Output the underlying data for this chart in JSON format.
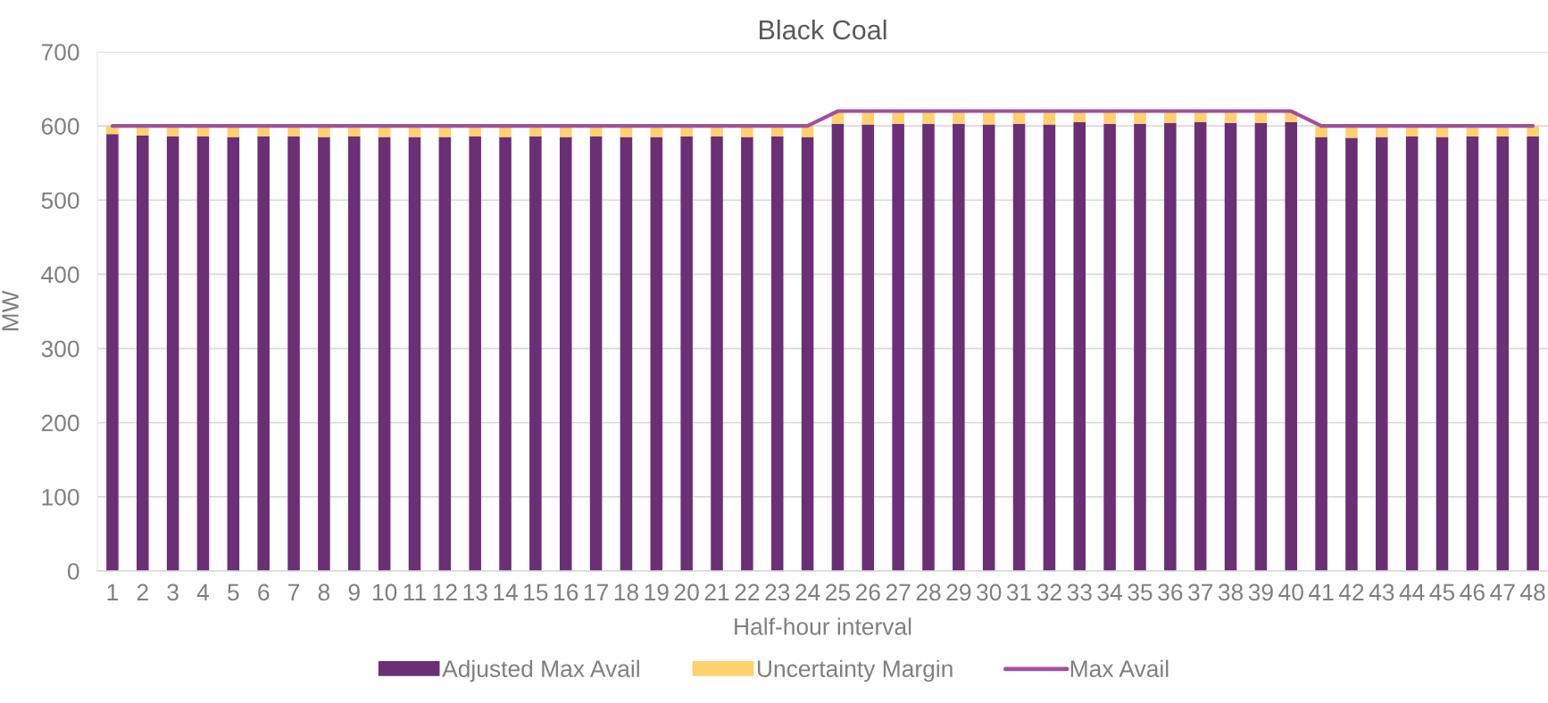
{
  "chart_data": {
    "type": "bar",
    "title": "Black Coal",
    "xlabel": "Half-hour interval",
    "ylabel": "MW",
    "categories": [
      "1",
      "2",
      "3",
      "4",
      "5",
      "6",
      "7",
      "8",
      "9",
      "10",
      "11",
      "12",
      "13",
      "14",
      "15",
      "16",
      "17",
      "18",
      "19",
      "20",
      "21",
      "22",
      "23",
      "24",
      "25",
      "26",
      "27",
      "28",
      "29",
      "30",
      "31",
      "32",
      "33",
      "34",
      "35",
      "36",
      "37",
      "38",
      "39",
      "40",
      "41",
      "42",
      "43",
      "44",
      "45",
      "46",
      "47",
      "48"
    ],
    "stacked": true,
    "series": [
      {
        "name": "Adjusted Max Avail",
        "color": "#6b2f76",
        "values": [
          589,
          587,
          586,
          586,
          585,
          586,
          586,
          585,
          586,
          585,
          585,
          585,
          586,
          585,
          586,
          585,
          586,
          585,
          585,
          586,
          586,
          585,
          586,
          585,
          603,
          602,
          603,
          603,
          603,
          602,
          603,
          602,
          605,
          603,
          603,
          604,
          605,
          604,
          604,
          605,
          585,
          584,
          585,
          586,
          585,
          586,
          586,
          586
        ]
      },
      {
        "name": "Uncertainty Margin",
        "color": "#fdd16d",
        "values": [
          11,
          13,
          14,
          14,
          15,
          14,
          14,
          15,
          14,
          15,
          15,
          15,
          14,
          15,
          14,
          15,
          14,
          15,
          15,
          14,
          14,
          15,
          14,
          15,
          17,
          18,
          17,
          17,
          17,
          18,
          17,
          18,
          15,
          17,
          17,
          16,
          15,
          16,
          16,
          15,
          15,
          16,
          15,
          14,
          15,
          14,
          14,
          14
        ]
      },
      {
        "name": "Max Avail",
        "type": "line",
        "color": "#a24f9e",
        "values": [
          600,
          600,
          600,
          600,
          600,
          600,
          600,
          600,
          600,
          600,
          600,
          600,
          600,
          600,
          600,
          600,
          600,
          600,
          600,
          600,
          600,
          600,
          600,
          600,
          620,
          620,
          620,
          620,
          620,
          620,
          620,
          620,
          620,
          620,
          620,
          620,
          620,
          620,
          620,
          620,
          600,
          600,
          600,
          600,
          600,
          600,
          600,
          600
        ]
      }
    ],
    "ylim": [
      0,
      700
    ],
    "yticks": [
      0,
      100,
      200,
      300,
      400,
      500,
      600,
      700
    ],
    "grid": "y",
    "legend": "bottom"
  }
}
